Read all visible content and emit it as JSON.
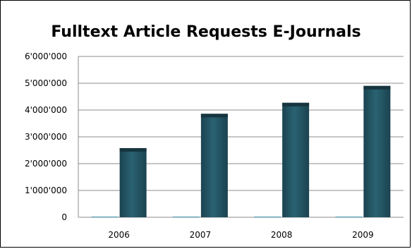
{
  "chart_data": {
    "type": "bar",
    "title": "Fulltext Article Requests E-Journals",
    "xlabel": "",
    "ylabel": "",
    "categories": [
      "2006",
      "2007",
      "2008",
      "2009"
    ],
    "series": [
      {
        "values": [
          0,
          0,
          0,
          0
        ]
      },
      {
        "values": [
          2580000,
          3860000,
          4270000,
          4900000
        ]
      }
    ],
    "ylim": [
      0,
      6000000
    ],
    "yticks": [
      "0",
      "1'000'000",
      "2'000'000",
      "3'000'000",
      "4'000'000",
      "5'000'000",
      "6'000'000"
    ],
    "grid": true,
    "legend": "none",
    "colors": {
      "bar": "#245563",
      "bar_top": "#16353e",
      "grid": "#8c8c8c",
      "axis": "#8c8c8c"
    }
  }
}
